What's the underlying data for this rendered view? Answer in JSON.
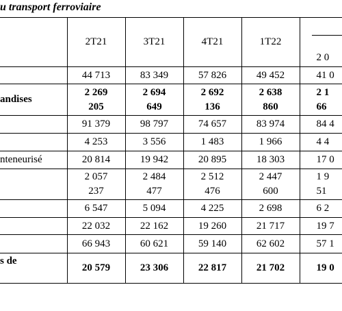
{
  "title": "u transport ferroviaire",
  "table": {
    "header": [
      null,
      "2T21",
      "3T21",
      "4T21",
      "1T22",
      "2 0"
    ],
    "rows": [
      [
        null,
        "44 713",
        "83 349",
        "57 826",
        "49 452",
        "41 0"
      ],
      [
        "andises",
        "2 269\n205",
        "2 694\n649",
        "2 692\n136",
        "2 638\n860",
        "2 1\n66"
      ],
      [
        null,
        "91 379",
        "98 797",
        "74 657",
        "83 974",
        "84 4"
      ],
      [
        null,
        "4 253",
        "3 556",
        "1 483",
        "1 966",
        "4 4"
      ],
      [
        "nteneurisé",
        "20 814",
        "19 942",
        "20 895",
        "18 303",
        "17 0"
      ],
      [
        null,
        "2 057\n237",
        "2 484\n477",
        "2 512\n476",
        "2 447\n600",
        "1 9\n51"
      ],
      [
        null,
        "6 547",
        "5 094",
        "4 225",
        "2 698",
        "6 2"
      ],
      [
        null,
        "22 032",
        "22 162",
        "19 260",
        "21 717",
        "19 7"
      ],
      [
        null,
        "66 943",
        "60 621",
        "59 140",
        "62 602",
        "57 1"
      ],
      [
        "s de",
        "20 579",
        "23 306",
        "22 817",
        "21 702",
        "19 0"
      ]
    ]
  }
}
